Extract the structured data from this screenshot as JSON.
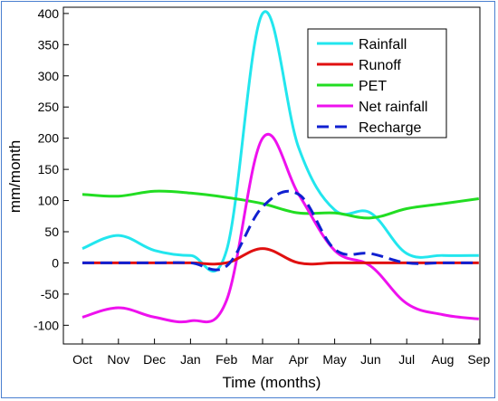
{
  "chart_data": {
    "type": "line",
    "title": "",
    "xlabel": "Time (months)",
    "ylabel": "mm/month",
    "categories": [
      "Oct",
      "Nov",
      "Dec",
      "Jan",
      "Feb",
      "Mar",
      "Apr",
      "May",
      "Jun",
      "Jul",
      "Aug",
      "Sep"
    ],
    "ylim": [
      -130,
      410
    ],
    "yticks": [
      -100,
      -50,
      0,
      50,
      100,
      150,
      200,
      250,
      300,
      350,
      400
    ],
    "grid": false,
    "legend_position": "top-right",
    "series": [
      {
        "name": "Rainfall",
        "color": "#22e6ee",
        "dash": "solid",
        "values": [
          23,
          44,
          20,
          12,
          20,
          400,
          185,
          85,
          80,
          15,
          12,
          12
        ]
      },
      {
        "name": "Runoff",
        "color": "#e01010",
        "dash": "solid",
        "values": [
          0,
          0,
          0,
          0,
          0,
          23,
          0,
          0,
          0,
          0,
          0,
          0
        ]
      },
      {
        "name": "PET",
        "color": "#22dd22",
        "dash": "solid",
        "values": [
          110,
          107,
          115,
          112,
          105,
          95,
          80,
          80,
          72,
          87,
          95,
          103
        ]
      },
      {
        "name": "Net rainfall",
        "color": "#ee11ee",
        "dash": "solid",
        "values": [
          -87,
          -72,
          -87,
          -93,
          -60,
          200,
          110,
          20,
          -5,
          -65,
          -83,
          -90
        ]
      },
      {
        "name": "Recharge",
        "color": "#1020d0",
        "dash": "dashed",
        "values": [
          0,
          0,
          0,
          0,
          -5,
          90,
          110,
          22,
          15,
          0,
          0,
          0
        ]
      }
    ]
  }
}
